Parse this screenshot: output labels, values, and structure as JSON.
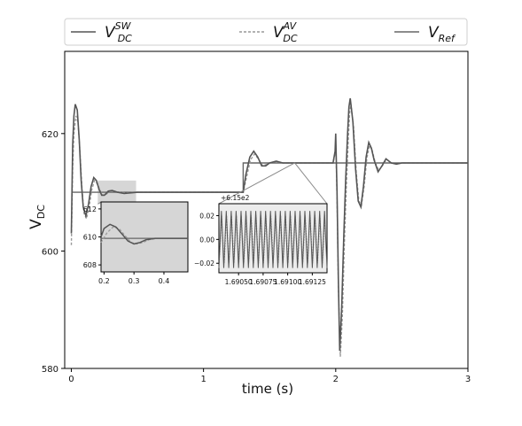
{
  "chart_data": {
    "type": "line",
    "xlabel": "time (s)",
    "ylabel_main": "V",
    "ylabel_sub": "DC",
    "xlim": [
      -0.05,
      3.0
    ],
    "ylim": [
      580,
      634
    ],
    "xticks": [
      0,
      1,
      2,
      3
    ],
    "yticks": [
      580,
      600,
      620
    ],
    "legend": {
      "placement": "top",
      "entries": [
        {
          "main": "V",
          "sub": "DC",
          "sup": "SW",
          "style": "solid",
          "color": "#555555"
        },
        {
          "main": "V",
          "sub": "DC",
          "sup": "AV",
          "style": "dashed",
          "color": "#999999"
        },
        {
          "main": "V",
          "sub": "Ref",
          "sup": "",
          "style": "solid",
          "color": "#666666"
        }
      ]
    },
    "series": [
      {
        "key": "sw",
        "x": [
          0.0,
          0.01,
          0.02,
          0.03,
          0.045,
          0.06,
          0.075,
          0.09,
          0.11,
          0.13,
          0.15,
          0.17,
          0.19,
          0.21,
          0.23,
          0.25,
          0.28,
          0.31,
          0.35,
          0.4,
          0.5,
          0.7,
          1.0,
          1.29,
          1.3,
          1.32,
          1.35,
          1.38,
          1.41,
          1.44,
          1.47,
          1.5,
          1.55,
          1.6,
          1.8,
          1.97,
          1.98,
          1.995,
          2.0,
          2.01,
          2.02,
          2.03,
          2.045,
          2.06,
          2.075,
          2.09,
          2.1,
          2.11,
          2.13,
          2.15,
          2.17,
          2.19,
          2.21,
          2.23,
          2.25,
          2.27,
          2.29,
          2.32,
          2.35,
          2.38,
          2.42,
          2.46,
          2.5,
          2.6,
          2.8,
          3.0
        ],
        "y": [
          603,
          618,
          623,
          625,
          624,
          619,
          612,
          607.5,
          606,
          608,
          611,
          612.5,
          612,
          610.5,
          609.5,
          609.5,
          610.2,
          610.3,
          610,
          609.8,
          610,
          610,
          610,
          610,
          610,
          613,
          616,
          617,
          616,
          614.5,
          614.5,
          615,
          615.3,
          615,
          615,
          615,
          615,
          617,
          620,
          610,
          595,
          583,
          590,
          602,
          612,
          620,
          624.5,
          626,
          622,
          614,
          608.5,
          607.5,
          611,
          616,
          618.5,
          617.5,
          615.5,
          613.5,
          614.5,
          615.7,
          615,
          614.8,
          615,
          615,
          615,
          615
        ]
      },
      {
        "key": "av",
        "x": [
          0.0,
          0.01,
          0.02,
          0.035,
          0.05,
          0.065,
          0.08,
          0.095,
          0.115,
          0.135,
          0.155,
          0.175,
          0.195,
          0.215,
          0.235,
          0.26,
          0.29,
          0.32,
          0.36,
          0.41,
          0.5,
          0.7,
          1.0,
          1.29,
          1.3,
          1.325,
          1.355,
          1.385,
          1.415,
          1.445,
          1.475,
          1.5,
          1.55,
          1.6,
          1.8,
          1.97,
          1.98,
          1.995,
          2.0,
          2.01,
          2.02,
          2.035,
          2.05,
          2.065,
          2.08,
          2.095,
          2.105,
          2.115,
          2.135,
          2.155,
          2.175,
          2.195,
          2.215,
          2.235,
          2.255,
          2.275,
          2.295,
          2.325,
          2.355,
          2.385,
          2.42,
          2.46,
          2.5,
          2.6,
          2.8,
          3.0
        ],
        "y": [
          601,
          614,
          620,
          623,
          622,
          617,
          611,
          606.5,
          605.5,
          607.5,
          610.5,
          612,
          611.5,
          610.5,
          609.5,
          609.6,
          610.1,
          610.2,
          610,
          609.9,
          610,
          610,
          610,
          610,
          610,
          612.5,
          615.5,
          616.5,
          615.7,
          614.6,
          614.7,
          615,
          615.2,
          615,
          615,
          615,
          615,
          616.5,
          619,
          609,
          594,
          582,
          589,
          601,
          611,
          619,
          623.5,
          625,
          621,
          613.5,
          608.5,
          607.8,
          611,
          615.8,
          618,
          617.2,
          615.4,
          613.7,
          614.6,
          615.6,
          615,
          614.8,
          615,
          615,
          615,
          615
        ]
      },
      {
        "key": "ref",
        "x": [
          0.0,
          1.3,
          1.3,
          3.0
        ],
        "y": [
          610,
          610,
          615,
          615
        ]
      }
    ],
    "highlight_regions": [
      {
        "x": [
          0.2,
          0.49
        ],
        "y": [
          608,
          612
        ]
      }
    ],
    "insets": [
      {
        "key": "inset1",
        "xlim": [
          0.19,
          0.48
        ],
        "ylim": [
          607.5,
          612.5
        ],
        "xticks": [
          0.2,
          0.3,
          0.4
        ],
        "xtick_labels": [
          "0.2",
          "0.3",
          "0.4"
        ],
        "yticks": [
          608,
          610,
          612
        ],
        "ytick_labels": [
          "608",
          "610",
          "612"
        ],
        "series": [
          {
            "key": "sw",
            "x": [
              0.19,
              0.2,
              0.22,
              0.24,
              0.26,
              0.28,
              0.3,
              0.32,
              0.34,
              0.37,
              0.4,
              0.44,
              0.48
            ],
            "y": [
              610.0,
              610.6,
              610.9,
              610.7,
              610.2,
              609.7,
              609.5,
              609.6,
              609.8,
              609.9,
              609.9,
              609.9,
              609.9
            ]
          },
          {
            "key": "av",
            "x": [
              0.19,
              0.21,
              0.23,
              0.25,
              0.27,
              0.29,
              0.31,
              0.33,
              0.35,
              0.38,
              0.42,
              0.48
            ],
            "y": [
              609.6,
              610.3,
              610.7,
              610.6,
              610.1,
              609.6,
              609.5,
              609.6,
              609.8,
              609.9,
              609.9,
              609.9
            ]
          },
          {
            "key": "ref",
            "x": [
              0.19,
              0.48
            ],
            "y": [
              609.9,
              609.9
            ]
          }
        ]
      },
      {
        "key": "inset2",
        "offset_text": "+6.15e2",
        "xlim": [
          1.6903,
          1.6914
        ],
        "ylim": [
          -0.028,
          0.03
        ],
        "xticks": [
          1.6905,
          1.69075,
          1.691,
          1.69125
        ],
        "xtick_labels": [
          "1.69050",
          "1.69075",
          "1.69100",
          "1.69125"
        ],
        "yticks": [
          -0.02,
          0.0,
          0.02
        ],
        "ytick_labels": [
          "−0.02",
          "0.00",
          "0.02"
        ],
        "oscillation": {
          "x_start": 1.6903,
          "x_end": 1.6914,
          "cycles": 22,
          "sw_amplitude": 0.024,
          "av_amplitude": 0.02
        }
      }
    ]
  }
}
